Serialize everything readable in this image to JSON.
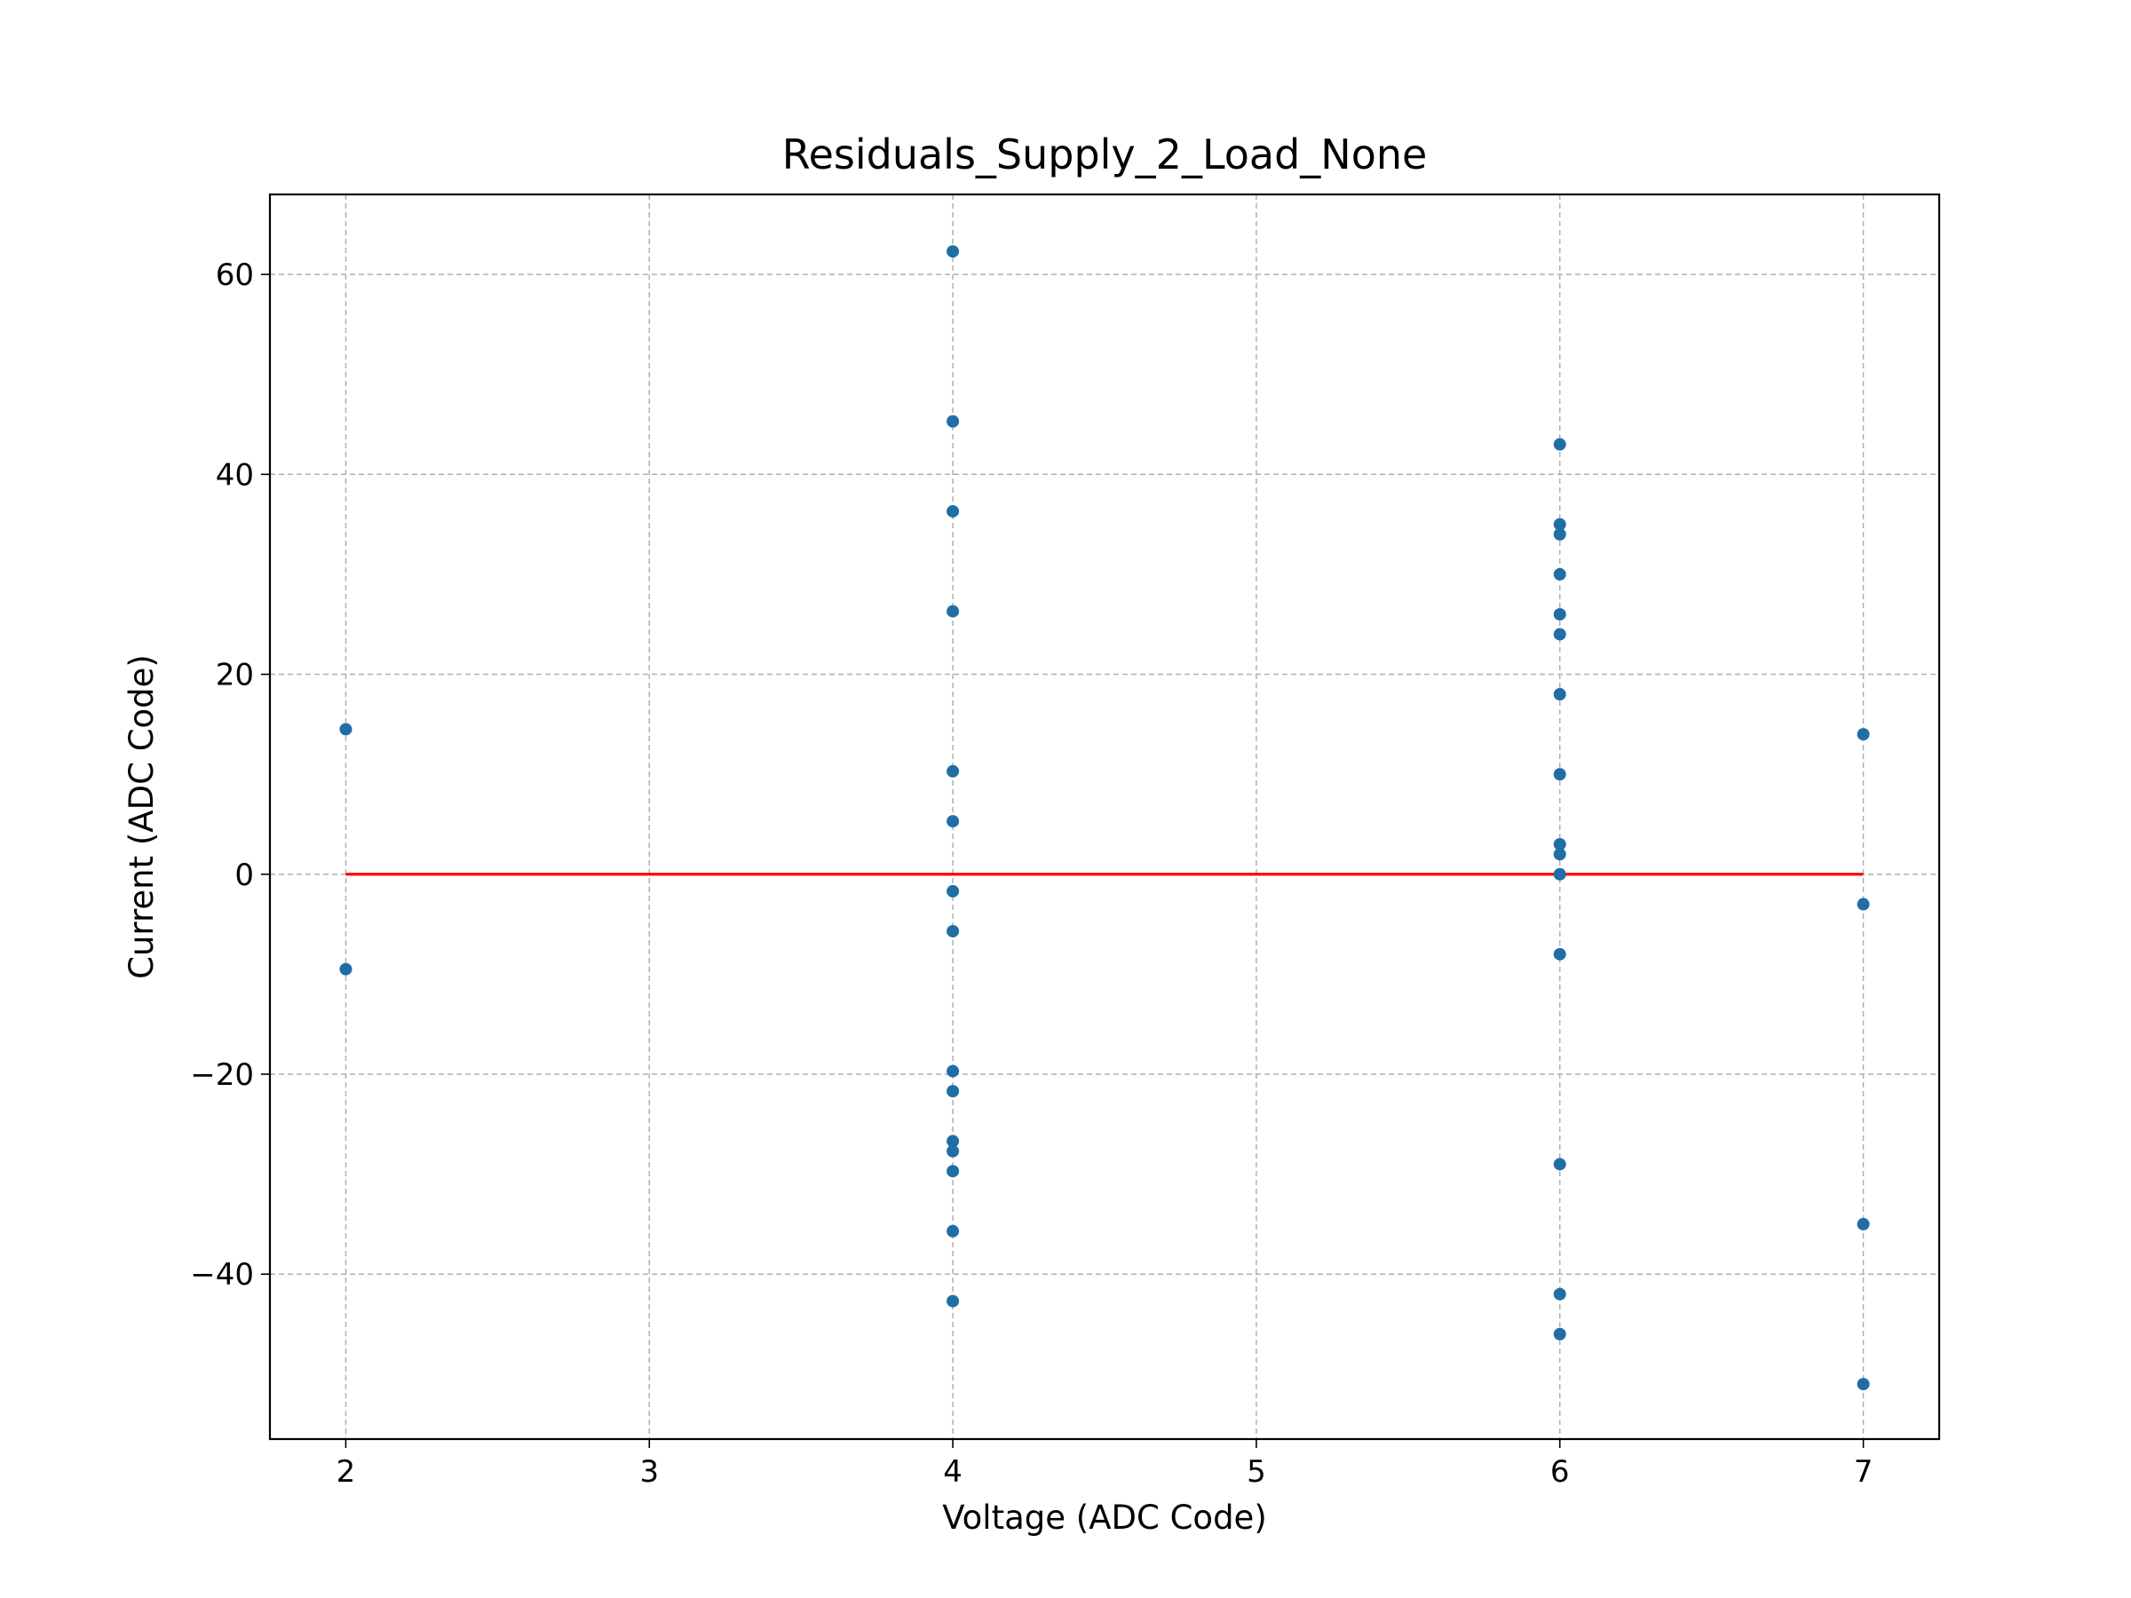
{
  "chart_data": {
    "type": "scatter",
    "title": "Residuals_Supply_2_Load_None",
    "xlabel": "Voltage (ADC Code)",
    "ylabel": "Current (ADC Code)",
    "xlim": [
      1.75,
      7.25
    ],
    "ylim": [
      -56.5,
      68
    ],
    "xticks": [
      2,
      3,
      4,
      5,
      6,
      7
    ],
    "xtick_labels": [
      "2",
      "3",
      "4",
      "5",
      "6",
      "7"
    ],
    "yticks": [
      -40,
      -20,
      0,
      20,
      40,
      60
    ],
    "ytick_labels": [
      "−40",
      "−20",
      "0",
      "20",
      "40",
      "60"
    ],
    "grid": true,
    "series": [
      {
        "marker_color": "#1f6fa6",
        "points": [
          [
            2,
            14.5
          ],
          [
            2,
            -9.5
          ],
          [
            4,
            62.3
          ],
          [
            4,
            45.3
          ],
          [
            4,
            36.3
          ],
          [
            4,
            26.3
          ],
          [
            4,
            10.3
          ],
          [
            4,
            5.3
          ],
          [
            4,
            -1.7
          ],
          [
            4,
            -5.7
          ],
          [
            4,
            -19.7
          ],
          [
            4,
            -21.7
          ],
          [
            4,
            -26.7
          ],
          [
            4,
            -27.7
          ],
          [
            4,
            -29.7
          ],
          [
            4,
            -35.7
          ],
          [
            4,
            -42.7
          ],
          [
            6,
            43
          ],
          [
            6,
            35
          ],
          [
            6,
            34
          ],
          [
            6,
            30
          ],
          [
            6,
            26
          ],
          [
            6,
            24
          ],
          [
            6,
            18
          ],
          [
            6,
            10
          ],
          [
            6,
            3
          ],
          [
            6,
            2
          ],
          [
            6,
            0
          ],
          [
            6,
            -8
          ],
          [
            6,
            -29
          ],
          [
            6,
            -42
          ],
          [
            6,
            -46
          ],
          [
            7,
            14
          ],
          [
            7,
            -3
          ],
          [
            7,
            -35
          ],
          [
            7,
            -51
          ]
        ]
      }
    ],
    "reference_line": {
      "color": "#ff0000",
      "points": [
        [
          2,
          0
        ],
        [
          4,
          0
        ],
        [
          6,
          0
        ],
        [
          7,
          0
        ]
      ]
    }
  }
}
